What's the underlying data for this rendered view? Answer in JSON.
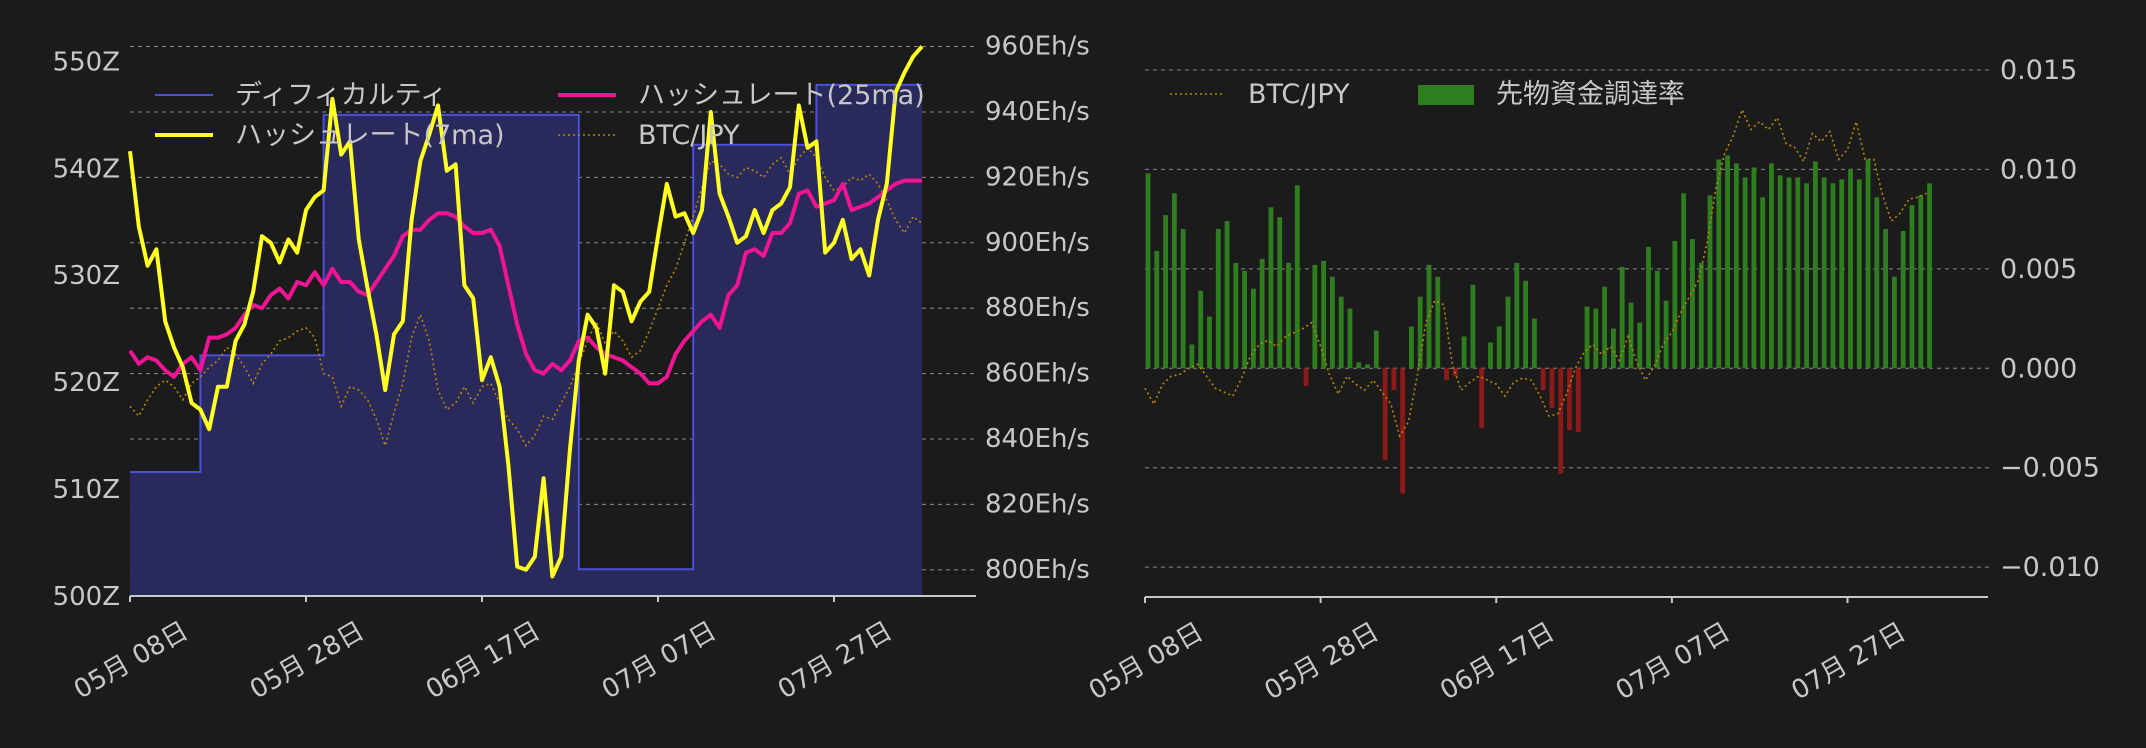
{
  "theme": {
    "background": "#1b1b1b",
    "axis_text": "#c8c8c8",
    "grid": "#c8c8c8",
    "difficulty_line": "#4b4fdc",
    "difficulty_fill": "#2a2a60",
    "hashrate_7ma": "#ffff22",
    "hashrate_25ma": "#ee1493",
    "btc_jpy": "#b8860b",
    "funding_pos": "#2e7d1e",
    "funding_neg": "#8b1a1a"
  },
  "chart_data": [
    {
      "type": "line",
      "x_axis": {
        "tick_labels": [
          "05月 08日",
          "05月 28日",
          "06月 17日",
          "07月 07日",
          "07月 27日"
        ],
        "tick_days": [
          0,
          20,
          40,
          60,
          80
        ],
        "range_days": [
          0,
          90
        ]
      },
      "left_axis": {
        "range": [
          500,
          552
        ],
        "ticks": [
          500,
          510,
          520,
          530,
          540,
          550
        ],
        "tick_labels": [
          "500Z",
          "510Z",
          "520Z",
          "530Z",
          "540Z",
          "550Z"
        ]
      },
      "right_axis": {
        "range": [
          792,
          962
        ],
        "ticks": [
          800,
          820,
          840,
          860,
          880,
          900,
          920,
          940,
          960
        ],
        "tick_labels": [
          "800Eh/s",
          "820Eh/s",
          "840Eh/s",
          "860Eh/s",
          "880Eh/s",
          "900Eh/s",
          "920Eh/s",
          "940Eh/s",
          "960Eh/s"
        ]
      },
      "grid": true,
      "legend": {
        "placement": "top",
        "entries": [
          "ディフィカルティ",
          "ハッシュレート(7ma)",
          "ハッシュレート(25ma)",
          "BTC/JPY"
        ]
      },
      "series": [
        {
          "name": "ディフィカルティ",
          "style": "step-area",
          "axis": "left",
          "points": [
            [
              0,
              511.6
            ],
            [
              8,
              511.6
            ],
            [
              8,
              522.5
            ],
            [
              22,
              522.5
            ],
            [
              22,
              545
            ],
            [
              51,
              545
            ],
            [
              51,
              502.5
            ],
            [
              64,
              502.5
            ],
            [
              64,
              542.2
            ],
            [
              78,
              542.2
            ],
            [
              78,
              547.8
            ],
            [
              90,
              547.8
            ]
          ]
        },
        {
          "name": "ハッシュレート(7ma)",
          "style": "line",
          "axis": "right",
          "x": [
            0,
            1,
            2,
            3,
            4,
            5,
            6,
            7,
            8,
            9,
            10,
            11,
            12,
            13,
            14,
            15,
            16,
            17,
            18,
            19,
            20,
            21,
            22,
            23,
            24,
            25,
            26,
            27,
            28,
            29,
            30,
            31,
            32,
            33,
            34,
            35,
            36,
            37,
            38,
            39,
            40,
            41,
            42,
            43,
            44,
            45,
            46,
            47,
            48,
            49,
            50,
            51,
            52,
            53,
            54,
            55,
            56,
            57,
            58,
            59,
            60,
            61,
            62,
            63,
            64,
            65,
            66,
            67,
            68,
            69,
            70,
            71,
            72,
            73,
            74,
            75,
            76,
            77,
            78,
            79,
            80,
            81,
            82,
            83,
            84,
            85,
            86,
            87,
            88,
            89,
            90
          ],
          "y": [
            928,
            905,
            893,
            898,
            876,
            868,
            862,
            851,
            849,
            843,
            856,
            856,
            870,
            875,
            885,
            902,
            900,
            894,
            901,
            897,
            910,
            914,
            916,
            944,
            927,
            931,
            901,
            886,
            872,
            855,
            872,
            876,
            907,
            925,
            933,
            942,
            922,
            924,
            887,
            883,
            858,
            865,
            856,
            832,
            801,
            800,
            804,
            828,
            798,
            804,
            837,
            864,
            878,
            874,
            860,
            887,
            885,
            876,
            882,
            885,
            902,
            918,
            908,
            909,
            903,
            910,
            940,
            915,
            908,
            900,
            902,
            910,
            903,
            910,
            912,
            917,
            942,
            929,
            931,
            897,
            900,
            907,
            895,
            898,
            890,
            907,
            918,
            946,
            952,
            957,
            960
          ]
        },
        {
          "name": "ハッシュレート(25ma)",
          "style": "line",
          "axis": "right",
          "x": [
            0,
            1,
            2,
            3,
            4,
            5,
            6,
            7,
            8,
            9,
            10,
            11,
            12,
            13,
            14,
            15,
            16,
            17,
            18,
            19,
            20,
            21,
            22,
            23,
            24,
            25,
            26,
            27,
            28,
            29,
            30,
            31,
            32,
            33,
            34,
            35,
            36,
            37,
            38,
            39,
            40,
            41,
            42,
            43,
            44,
            45,
            46,
            47,
            48,
            49,
            50,
            51,
            52,
            53,
            54,
            55,
            56,
            57,
            58,
            59,
            60,
            61,
            62,
            63,
            64,
            65,
            66,
            67,
            68,
            69,
            70,
            71,
            72,
            73,
            74,
            75,
            76,
            77,
            78,
            79,
            80,
            81,
            82,
            83,
            84,
            85,
            86,
            87,
            88,
            89,
            90
          ],
          "y": [
            867,
            863,
            865,
            864,
            861,
            859,
            863,
            865,
            861,
            871,
            871,
            872,
            874,
            878,
            881,
            880,
            884,
            886,
            883,
            888,
            887,
            891,
            887,
            892,
            888,
            888,
            885,
            884,
            888,
            892,
            896,
            902,
            904,
            904,
            907,
            909,
            909,
            908,
            905,
            903,
            903,
            904,
            899,
            887,
            875,
            866,
            861,
            860,
            863,
            861,
            864,
            870,
            871,
            868,
            866,
            865,
            864,
            862,
            860,
            857,
            857,
            859,
            866,
            870,
            873,
            876,
            878,
            874,
            884,
            887,
            897,
            898,
            896,
            903,
            903,
            906,
            915,
            916,
            911,
            912,
            913,
            918,
            910,
            911,
            912,
            914,
            916,
            918,
            919,
            919,
            919
          ]
        },
        {
          "name": "BTC/JPY",
          "style": "dotted",
          "axis": "right",
          "x": [
            0,
            1,
            2,
            3,
            4,
            5,
            6,
            7,
            8,
            9,
            10,
            11,
            12,
            13,
            14,
            15,
            16,
            17,
            18,
            19,
            20,
            21,
            22,
            23,
            24,
            25,
            26,
            27,
            28,
            29,
            30,
            31,
            32,
            33,
            34,
            35,
            36,
            37,
            38,
            39,
            40,
            41,
            42,
            43,
            44,
            45,
            46,
            47,
            48,
            49,
            50,
            51,
            52,
            53,
            54,
            55,
            56,
            57,
            58,
            59,
            60,
            61,
            62,
            63,
            64,
            65,
            66,
            67,
            68,
            69,
            70,
            71,
            72,
            73,
            74,
            75,
            76,
            77,
            78,
            79,
            80,
            81,
            82,
            83,
            84,
            85,
            86,
            87,
            88,
            89,
            90
          ],
          "y": [
            850,
            847,
            852,
            856,
            858,
            856,
            852,
            857,
            859,
            862,
            864,
            868,
            866,
            862,
            857,
            863,
            866,
            870,
            871,
            873,
            874,
            871,
            860,
            859,
            850,
            856,
            855,
            852,
            846,
            838,
            848,
            857,
            871,
            878,
            870,
            855,
            849,
            851,
            856,
            851,
            856,
            857,
            851,
            846,
            843,
            838,
            841,
            847,
            846,
            851,
            856,
            863,
            870,
            876,
            869,
            873,
            870,
            865,
            867,
            873,
            880,
            887,
            892,
            900,
            908,
            917,
            925,
            924,
            921,
            920,
            923,
            922,
            920,
            924,
            926,
            921,
            926,
            929,
            926,
            920,
            916,
            917,
            920,
            919,
            921,
            918,
            913,
            907,
            903,
            908,
            906
          ]
        }
      ]
    },
    {
      "type": "bar",
      "x_axis": {
        "tick_labels": [
          "05月 08日",
          "05月 28日",
          "06月 17日",
          "07月 07日",
          "07月 27日"
        ],
        "tick_days": [
          0,
          20,
          40,
          60,
          80
        ],
        "range_days": [
          0,
          96
        ]
      },
      "y_axis": {
        "range": [
          -0.0115,
          0.0155
        ],
        "ticks": [
          -0.01,
          -0.005,
          0.0,
          0.005,
          0.01,
          0.015
        ],
        "tick_labels": [
          "−0.010",
          "−0.005",
          "0.000",
          "0.005",
          "0.010",
          "0.015"
        ]
      },
      "grid": true,
      "legend": {
        "placement": "top-left",
        "entries": [
          "BTC/JPY",
          "先物資金調達率"
        ]
      },
      "series": [
        {
          "name": "先物資金調達率",
          "style": "bar",
          "x": [
            0,
            1,
            2,
            3,
            4,
            5,
            6,
            7,
            8,
            9,
            10,
            11,
            12,
            13,
            14,
            15,
            16,
            17,
            18,
            19,
            20,
            21,
            22,
            23,
            24,
            25,
            26,
            27,
            28,
            29,
            30,
            31,
            32,
            33,
            34,
            35,
            36,
            37,
            38,
            39,
            40,
            41,
            42,
            43,
            44,
            45,
            46,
            47,
            48,
            49,
            50,
            51,
            52,
            53,
            54,
            55,
            56,
            57,
            58,
            59,
            60,
            61,
            62,
            63,
            64,
            65,
            66,
            67,
            68,
            69,
            70,
            71,
            72,
            73,
            74,
            75,
            76,
            77,
            78,
            79,
            80,
            81,
            82,
            83,
            84,
            85,
            86,
            87,
            88,
            89
          ],
          "values": [
            0.0098,
            0.0059,
            0.0077,
            0.0088,
            0.007,
            0.0012,
            0.0039,
            0.0026,
            0.007,
            0.0074,
            0.0053,
            0.0049,
            0.004,
            0.0055,
            0.0081,
            0.0076,
            0.0053,
            0.0092,
            -0.0009,
            0.0052,
            0.0054,
            0.0046,
            0.0036,
            0.003,
            0.0003,
            0.0002,
            0.0019,
            -0.0046,
            -0.0011,
            -0.0063,
            0.0021,
            0.0036,
            0.0052,
            0.0046,
            -0.0006,
            -0.0004,
            0.0016,
            0.0042,
            -0.003,
            0.0013,
            0.0021,
            0.0036,
            0.0053,
            0.0044,
            0.0025,
            -0.0011,
            -0.002,
            -0.0053,
            -0.0031,
            -0.0032,
            0.0031,
            0.003,
            0.0041,
            0.002,
            0.0051,
            0.0033,
            0.0023,
            0.0061,
            0.0049,
            0.0034,
            0.0064,
            0.0088,
            0.0065,
            0.0053,
            0.0087,
            0.0105,
            0.0107,
            0.0103,
            0.0096,
            0.0101,
            0.0086,
            0.0103,
            0.0097,
            0.0096,
            0.0096,
            0.0093,
            0.0104,
            0.0096,
            0.0093,
            0.0095,
            0.01,
            0.0095,
            0.0105,
            0.0086,
            0.007,
            0.0046,
            0.0069,
            0.0082,
            0.0087,
            0.0093
          ]
        },
        {
          "name": "BTC/JPY",
          "style": "dotted",
          "x": [
            0,
            1,
            2,
            3,
            4,
            5,
            6,
            7,
            8,
            9,
            10,
            11,
            12,
            13,
            14,
            15,
            16,
            17,
            18,
            19,
            20,
            21,
            22,
            23,
            24,
            25,
            26,
            27,
            28,
            29,
            30,
            31,
            32,
            33,
            34,
            35,
            36,
            37,
            38,
            39,
            40,
            41,
            42,
            43,
            44,
            45,
            46,
            47,
            48,
            49,
            50,
            51,
            52,
            53,
            54,
            55,
            56,
            57,
            58,
            59,
            60,
            61,
            62,
            63,
            64,
            65,
            66,
            67,
            68,
            69,
            70,
            71,
            72,
            73,
            74,
            75,
            76,
            77,
            78,
            79,
            80,
            81,
            82,
            83,
            84,
            85,
            86,
            87,
            88,
            89
          ],
          "values": [
            -0.001,
            -0.0018,
            -0.0008,
            -0.0004,
            -0.0003,
            0.0,
            0.0002,
            -0.0004,
            -0.001,
            -0.0012,
            -0.0014,
            -0.0005,
            0.0006,
            0.0012,
            0.0014,
            0.0011,
            0.0016,
            0.0018,
            0.002,
            0.0023,
            0.0011,
            -0.0003,
            -0.0013,
            -0.0004,
            -0.0008,
            -0.0011,
            -0.0006,
            -0.0012,
            -0.0018,
            -0.0034,
            -0.0027,
            -0.0004,
            0.0023,
            0.0034,
            0.0032,
            0.0002,
            -0.0011,
            -0.0007,
            -0.0004,
            -0.0006,
            -0.0008,
            -0.0014,
            -0.0007,
            -0.0005,
            -0.0006,
            -0.0014,
            -0.0024,
            -0.0023,
            -0.0013,
            0.0,
            0.0008,
            0.0012,
            0.0007,
            0.0011,
            0.0004,
            0.0016,
            0.0003,
            -0.0006,
            0.0001,
            0.0012,
            0.0018,
            0.0028,
            0.0036,
            0.0044,
            0.0063,
            0.009,
            0.0108,
            0.0117,
            0.013,
            0.012,
            0.0124,
            0.012,
            0.0126,
            0.0113,
            0.0111,
            0.0104,
            0.0118,
            0.0114,
            0.0119,
            0.0105,
            0.011,
            0.0124,
            0.0105,
            0.0105,
            0.0087,
            0.0074,
            0.0078,
            0.0085,
            0.0086,
            0.0088
          ]
        }
      ]
    }
  ]
}
